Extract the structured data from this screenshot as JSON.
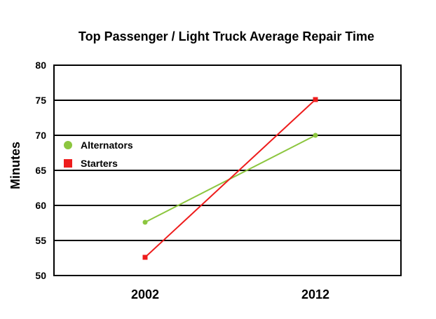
{
  "chart_data": {
    "type": "line",
    "title": "Top Passenger / Light Truck Average Repair Time",
    "xlabel": "",
    "ylabel": "Minutes",
    "categories": [
      "2002",
      "2012"
    ],
    "ylim": [
      50,
      80
    ],
    "yticks": [
      "50",
      "55",
      "60",
      "65",
      "70",
      "75",
      "80"
    ],
    "grid": true,
    "legend_position": "left",
    "series": [
      {
        "name": "Alternators",
        "values": [
          57.6,
          70.0
        ],
        "color": "#8cc63f",
        "marker": "circle"
      },
      {
        "name": "Starters",
        "values": [
          52.6,
          75.1
        ],
        "color": "#ee1c1c",
        "marker": "square"
      }
    ]
  }
}
